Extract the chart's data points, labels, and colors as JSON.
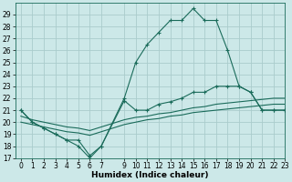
{
  "title": "",
  "xlabel": "Humidex (Indice chaleur)",
  "bg_color": "#cce8e8",
  "grid_color": "#aacccc",
  "line_color": "#1a6b5a",
  "line1_x": [
    0,
    1,
    2,
    3,
    4,
    5,
    6,
    7,
    9,
    10,
    11,
    12,
    13,
    14,
    15,
    16,
    17,
    18,
    19,
    20,
    21,
    22,
    23
  ],
  "line1_y": [
    21,
    20,
    19.5,
    19,
    18.5,
    18,
    17,
    18,
    22,
    25,
    26.5,
    27.5,
    28.5,
    28.5,
    29.5,
    28.5,
    28.5,
    26,
    23,
    22.5,
    21,
    21,
    21
  ],
  "line2_x": [
    0,
    1,
    2,
    3,
    4,
    5,
    6,
    7,
    9,
    10,
    11,
    12,
    13,
    14,
    15,
    16,
    17,
    18,
    19,
    20,
    21,
    22,
    23
  ],
  "line2_y": [
    21,
    20,
    19.5,
    19,
    18.5,
    18.5,
    17.2,
    18,
    21.8,
    21,
    21,
    21.5,
    21.7,
    22,
    22.5,
    22.5,
    23,
    23,
    23,
    22.5,
    21,
    21,
    21
  ],
  "line3_x": [
    0,
    1,
    2,
    3,
    4,
    5,
    6,
    9,
    10,
    11,
    12,
    13,
    14,
    15,
    16,
    17,
    18,
    19,
    20,
    21,
    22,
    23
  ],
  "line3_y": [
    20.5,
    20.2,
    20.0,
    19.8,
    19.6,
    19.5,
    19.3,
    20.2,
    20.4,
    20.5,
    20.7,
    20.8,
    21.0,
    21.2,
    21.3,
    21.5,
    21.6,
    21.7,
    21.8,
    21.9,
    22.0,
    22.0
  ],
  "line4_x": [
    0,
    1,
    2,
    3,
    4,
    5,
    6,
    9,
    10,
    11,
    12,
    13,
    14,
    15,
    16,
    17,
    18,
    19,
    20,
    21,
    22,
    23
  ],
  "line4_y": [
    20.0,
    19.8,
    19.6,
    19.4,
    19.2,
    19.1,
    18.9,
    19.8,
    20.0,
    20.2,
    20.3,
    20.5,
    20.6,
    20.8,
    20.9,
    21.0,
    21.1,
    21.2,
    21.3,
    21.4,
    21.5,
    21.5
  ],
  "ylim": [
    17,
    30
  ],
  "xlim": [
    -0.5,
    23
  ],
  "yticks": [
    17,
    18,
    19,
    20,
    21,
    22,
    23,
    24,
    25,
    26,
    27,
    28,
    29
  ],
  "xticks": [
    0,
    1,
    2,
    3,
    4,
    5,
    6,
    7,
    9,
    10,
    11,
    12,
    13,
    14,
    15,
    16,
    17,
    18,
    19,
    20,
    21,
    22,
    23
  ],
  "tick_fontsize": 5.5,
  "xlabel_fontsize": 6.5
}
